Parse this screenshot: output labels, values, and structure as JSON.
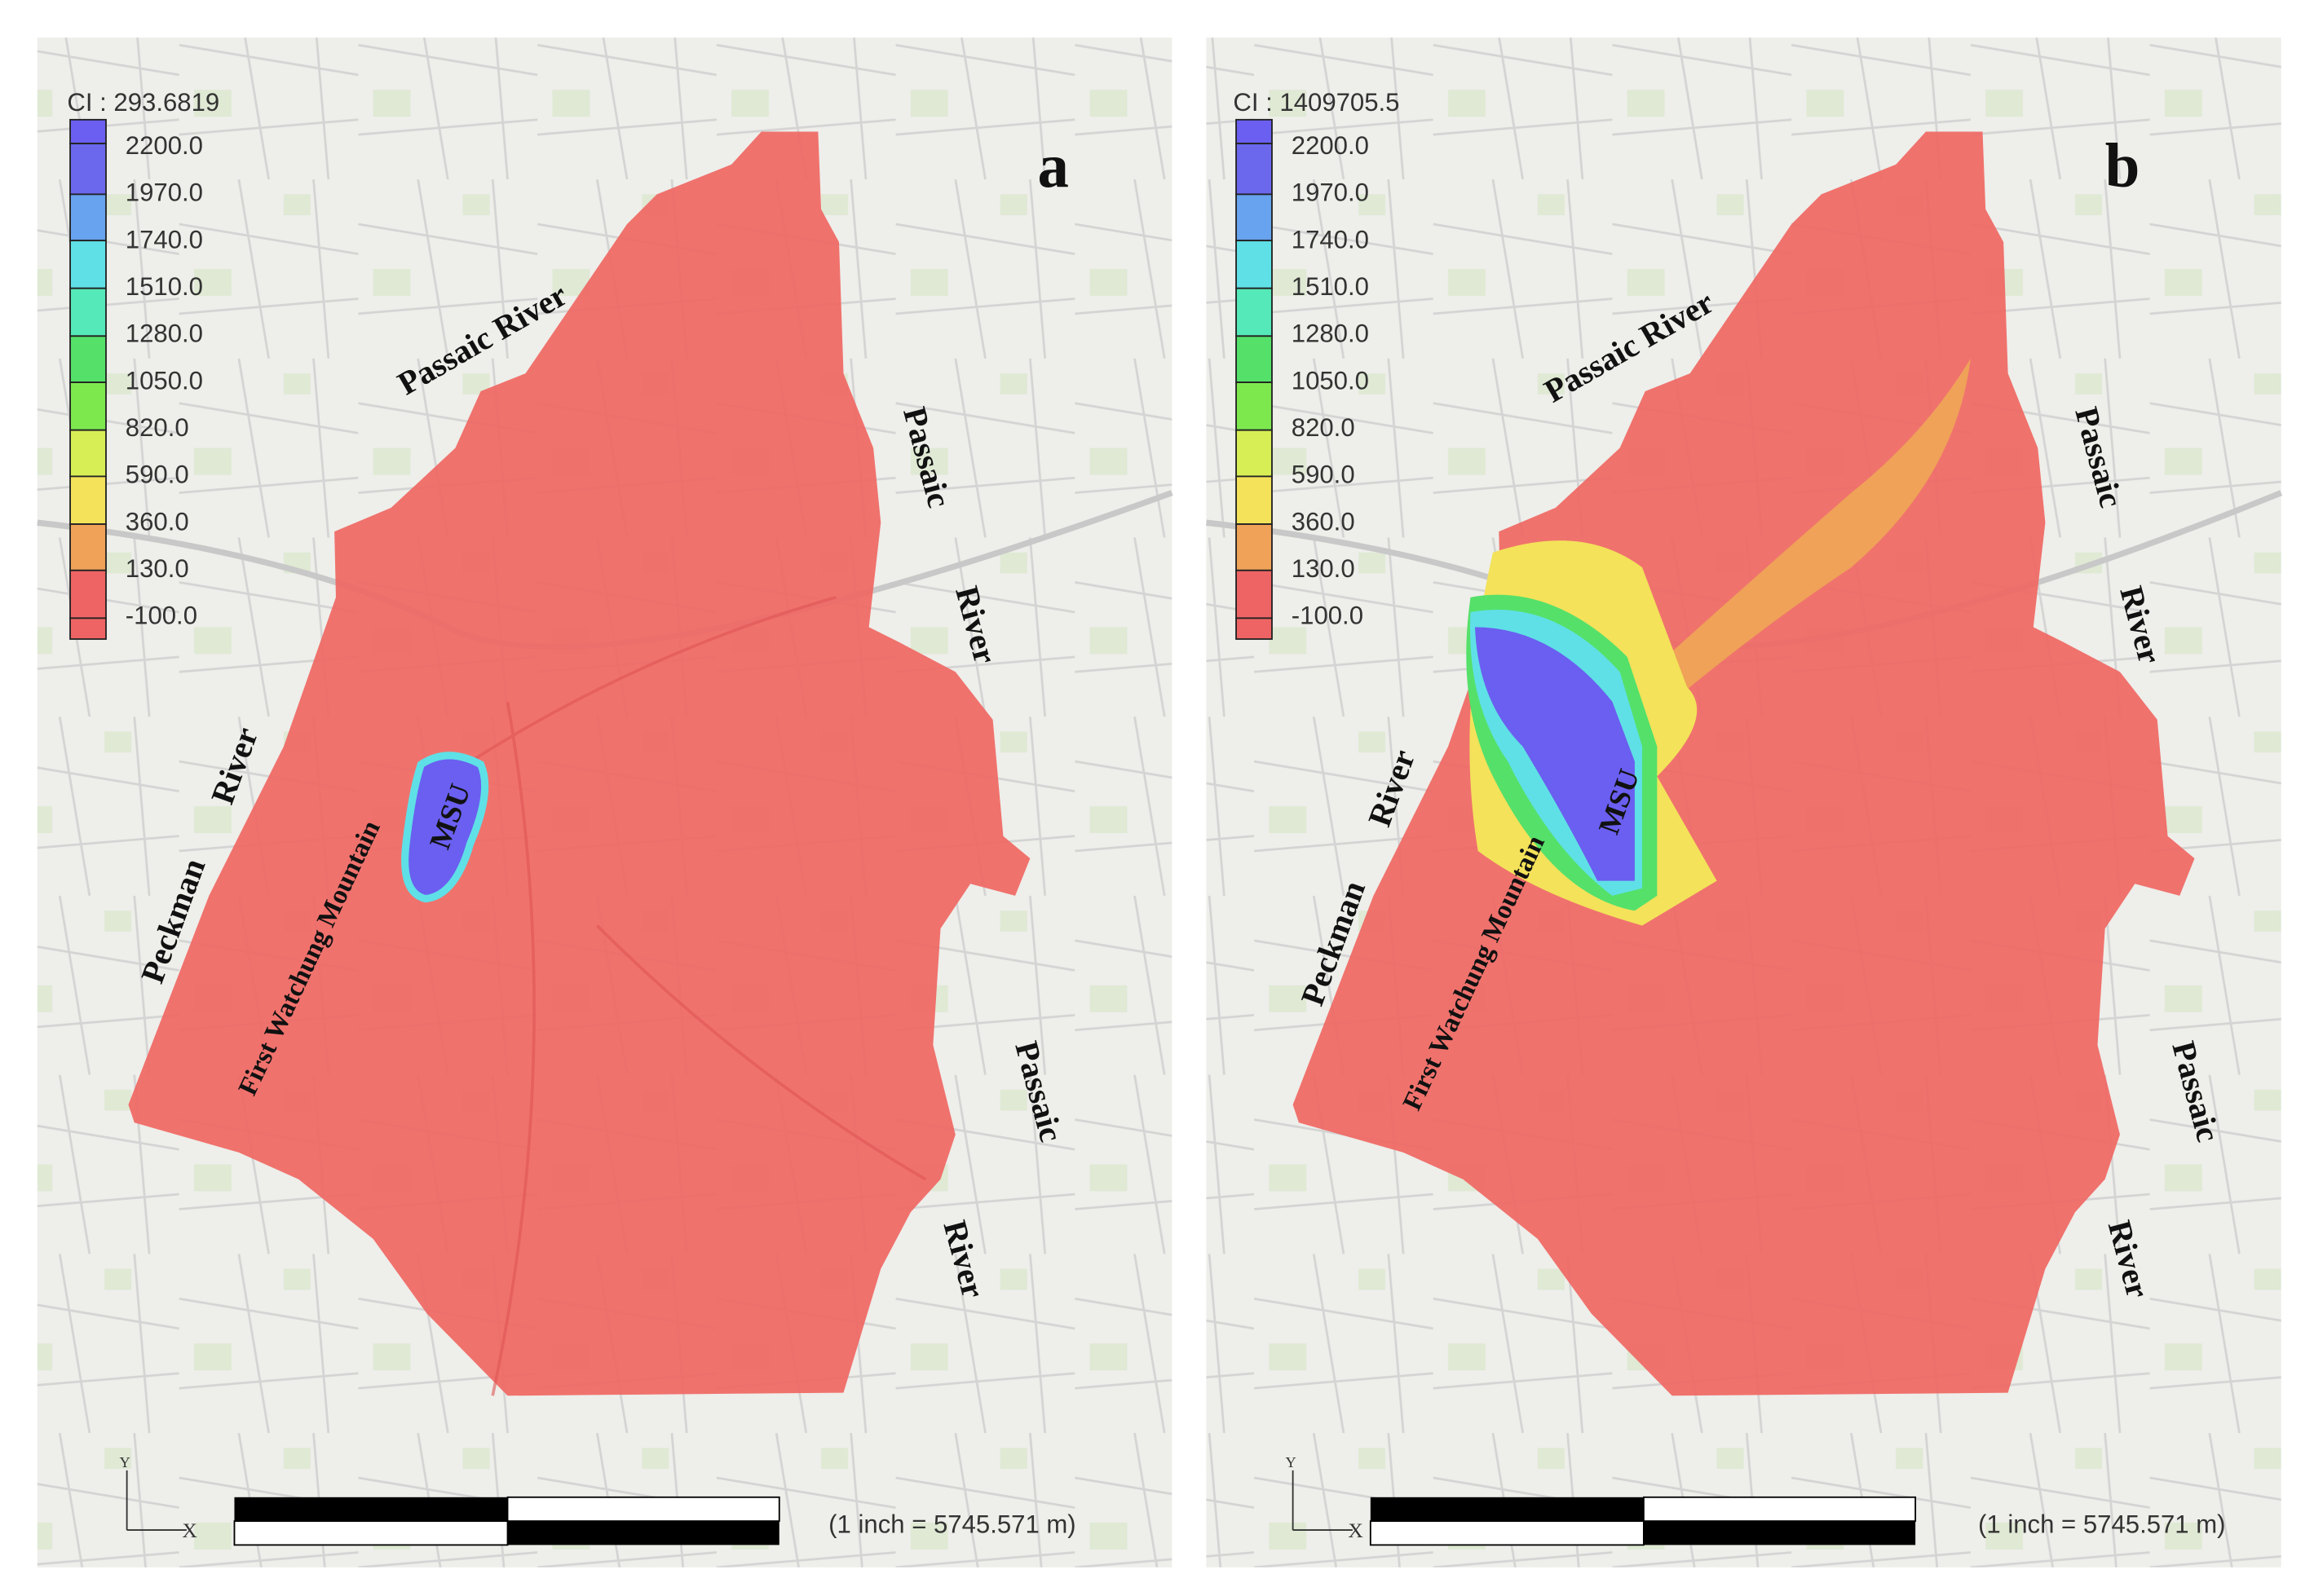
{
  "legend_values": [
    "2200.0",
    "1970.0",
    "1740.0",
    "1510.0",
    "1280.0",
    "1050.0",
    "820.0",
    "590.0",
    "360.0",
    "130.0",
    "-100.0"
  ],
  "legend_colors": [
    "#6a5ff0",
    "#6b68ee",
    "#67a3ee",
    "#5fe0e6",
    "#55e8b8",
    "#55e06a",
    "#7de84e",
    "#d8ee55",
    "#f3e25a",
    "#efa258",
    "#ee6464",
    "#ee6464"
  ],
  "region_color": "#ef6a66",
  "panels": [
    {
      "letter": "a",
      "ci_label": "CI : 293.6819"
    },
    {
      "letter": "b",
      "ci_label": "CI : 1409705.5"
    }
  ],
  "labels": {
    "passaic_river_top": "Passaic  River",
    "passaic": "Passaic",
    "river": "River",
    "peckman": "Peckman",
    "first_watchung": "First Watchung Mountain",
    "msu": "MSU"
  },
  "scale_text": "(1 inch = 5745.571 m)",
  "axis_labels": {
    "y": "Y",
    "x": "X"
  }
}
